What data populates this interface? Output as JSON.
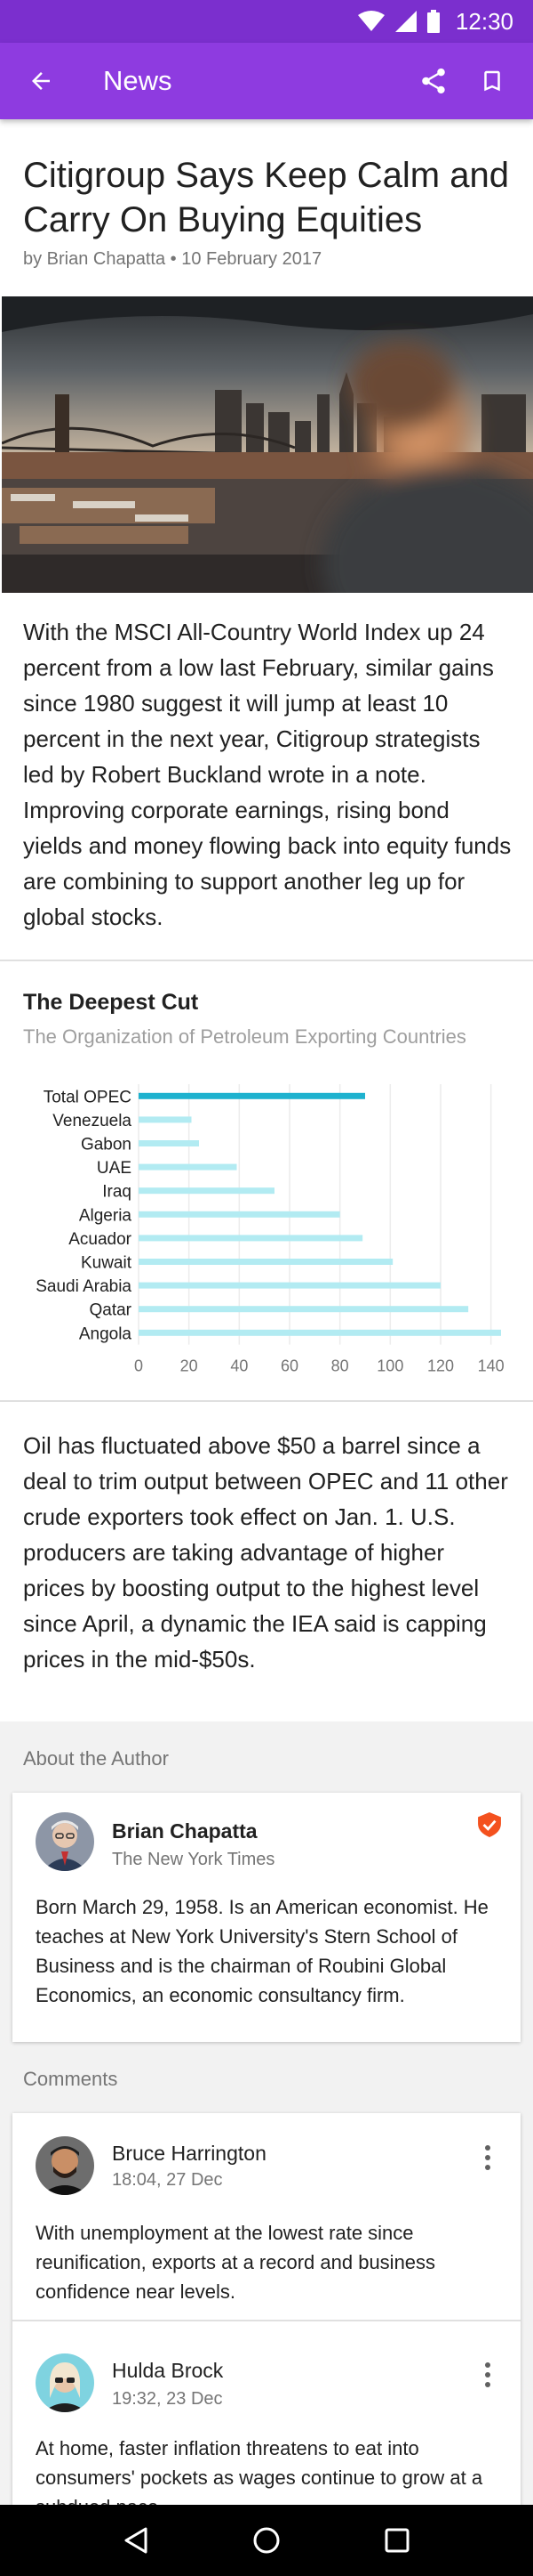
{
  "status_bar": {
    "time": "12:30"
  },
  "app_bar": {
    "title": "News"
  },
  "article": {
    "title": "Citigroup Says Keep Calm and Carry On Buying Equities",
    "byline": "by Brian Chapatta • 10 February 2017",
    "paragraph_1": "With the MSCI All-Country World Index up 24 percent from a low last February, similar gains since 1980 suggest it will jump at least 10 percent in the next year, Citigroup strategists led by Robert Buckland wrote in a note. Improving corporate earnings, rising bond yields and money flowing back into equity funds are combining to support another leg up for global stocks.",
    "paragraph_2": "Oil has fluctuated above $50 a barrel since a deal to trim output between OPEC and 11 other crude exporters took effect on Jan. 1. U.S. producers are taking advantage of higher prices by boosting output to the highest level since April, a dynamic the IEA said is capping prices in the mid-$50s."
  },
  "chart_data": {
    "type": "bar",
    "orientation": "horizontal",
    "title": "The Deepest Cut",
    "subtitle": "The Organization of Petroleum Exporting Countries",
    "categories": [
      "Total OPEC",
      "Venezuela",
      "Gabon",
      "UAE",
      "Iraq",
      "Algeria",
      "Acuador",
      "Kuwait",
      "Saudi Arabia",
      "Qatar",
      "Angola"
    ],
    "values": [
      90,
      21,
      24,
      39,
      54,
      80,
      89,
      101,
      120,
      131,
      144
    ],
    "highlight": "Total OPEC",
    "colors": {
      "highlight": "#1eb2cf",
      "normal": "#b2ebf2"
    },
    "xlim": [
      0,
      144
    ],
    "xticks": [
      0,
      20,
      40,
      60,
      80,
      100,
      120,
      140
    ],
    "grid": true
  },
  "author": {
    "section_label": "About the Author",
    "name": "Brian Chapatta",
    "affiliation": "The New York Times",
    "bio": "Born March 29, 1958. Is an American economist. He teaches at New York University's Stern School of Business and is the chairman of Roubini Global Economics, an economic consultancy firm.",
    "badge_icon": "verified-shield-icon",
    "badge_color": "#f4511e"
  },
  "comments": {
    "section_label": "Comments",
    "items": [
      {
        "name": "Bruce Harrington",
        "time": "18:04, 27 Dec",
        "text": "With unemployment at the lowest rate since reunification, exports at a record and business confidence near levels."
      },
      {
        "name": "Hulda Brock",
        "time": "19:32, 23 Dec",
        "text": "At home, faster inflation threatens to eat into consumers' pockets as wages continue to grow at a subdued pace."
      }
    ]
  },
  "colors": {
    "status_bar": "#7b2fce",
    "app_bar": "#8e3be0"
  }
}
